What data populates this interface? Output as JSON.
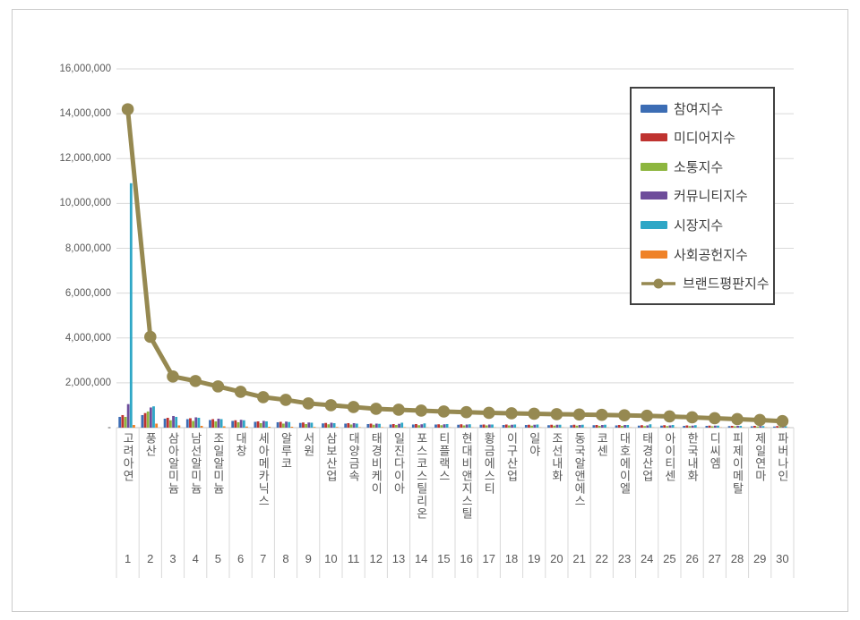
{
  "chart_data": {
    "type": "bar",
    "subtype": "grouped-bars-with-line-overlay",
    "title": "",
    "grid": true,
    "legend_position": "top-right",
    "categories": [
      "고려아연",
      "풍산",
      "삼아알미늄",
      "남선알미늄",
      "조일알미늄",
      "대창",
      "세아메카닉스",
      "알루코",
      "서원",
      "삼보산업",
      "대양금속",
      "태경비케이",
      "일진다이아",
      "포스코스틸리온",
      "티플랙스",
      "현대비앤지스틸",
      "황금에스티",
      "이구산업",
      "일야",
      "조선내화",
      "동국알앤에스",
      "코센",
      "대호에이엘",
      "태경산업",
      "아이티센",
      "한국내화",
      "디씨엠",
      "피제이메탈",
      "제일연마",
      "파버나인"
    ],
    "rank_labels": [
      "1",
      "2",
      "3",
      "4",
      "5",
      "6",
      "7",
      "8",
      "9",
      "10",
      "11",
      "12",
      "13",
      "14",
      "15",
      "16",
      "17",
      "18",
      "19",
      "20",
      "21",
      "22",
      "23",
      "24",
      "25",
      "26",
      "27",
      "28",
      "29",
      "30"
    ],
    "y_axis": {
      "min": 0,
      "max": 16000000,
      "step": 2000000,
      "tick_labels_top_to_bottom": [
        "16,000,000",
        "14,000,000",
        "12,000,000",
        "10,000,000",
        "8,000,000",
        "6,000,000",
        "4,000,000",
        "2,000,000",
        "-"
      ]
    },
    "series": [
      {
        "name": "참여지수",
        "color": "#3C6DB4",
        "values": [
          480000,
          560000,
          400000,
          380000,
          340000,
          300000,
          260000,
          240000,
          210000,
          190000,
          180000,
          160000,
          140000,
          140000,
          140000,
          130000,
          130000,
          120000,
          120000,
          110000,
          110000,
          110000,
          100000,
          90000,
          90000,
          80000,
          80000,
          70000,
          60000,
          50000
        ]
      },
      {
        "name": "미디어지수",
        "color": "#BF3330",
        "values": [
          560000,
          650000,
          440000,
          420000,
          380000,
          330000,
          280000,
          260000,
          230000,
          210000,
          200000,
          180000,
          160000,
          160000,
          150000,
          150000,
          140000,
          140000,
          130000,
          130000,
          130000,
          120000,
          120000,
          110000,
          110000,
          100000,
          90000,
          80000,
          80000,
          70000
        ]
      },
      {
        "name": "소통지수",
        "color": "#8DB63F",
        "values": [
          480000,
          720000,
          330000,
          300000,
          280000,
          240000,
          200000,
          180000,
          160000,
          150000,
          140000,
          130000,
          120000,
          110000,
          110000,
          100000,
          100000,
          100000,
          90000,
          90000,
          90000,
          80000,
          80000,
          70000,
          70000,
          70000,
          60000,
          60000,
          50000,
          40000
        ]
      },
      {
        "name": "커뮤니티지수",
        "color": "#6E4D9B",
        "values": [
          1050000,
          900000,
          520000,
          460000,
          400000,
          350000,
          300000,
          270000,
          230000,
          220000,
          200000,
          180000,
          170000,
          150000,
          150000,
          140000,
          140000,
          130000,
          130000,
          130000,
          120000,
          120000,
          120000,
          100000,
          100000,
          90000,
          90000,
          80000,
          70000,
          60000
        ]
      },
      {
        "name": "시장지수",
        "color": "#2FA7C6",
        "values": [
          10900000,
          950000,
          480000,
          440000,
          380000,
          330000,
          280000,
          250000,
          220000,
          200000,
          180000,
          170000,
          220000,
          190000,
          160000,
          150000,
          140000,
          140000,
          140000,
          130000,
          130000,
          130000,
          120000,
          150000,
          120000,
          110000,
          90000,
          80000,
          70000,
          60000
        ]
      },
      {
        "name": "사회공헌지수",
        "color": "#EF8228",
        "values": [
          120000,
          180000,
          100000,
          80000,
          60000,
          50000,
          40000,
          40000,
          30000,
          30000,
          20000,
          20000,
          20000,
          10000,
          10000,
          10000,
          10000,
          10000,
          10000,
          10000,
          10000,
          10000,
          10000,
          10000,
          10000,
          10000,
          10000,
          10000,
          10000,
          10000
        ]
      }
    ],
    "line_series": {
      "name": "브랜드평판지수",
      "color": "#968951",
      "values": [
        14200000,
        4050000,
        2280000,
        2080000,
        1840000,
        1600000,
        1360000,
        1240000,
        1080000,
        1000000,
        920000,
        840000,
        800000,
        760000,
        720000,
        690000,
        660000,
        640000,
        620000,
        600000,
        585000,
        570000,
        550000,
        530000,
        500000,
        460000,
        420000,
        380000,
        340000,
        290000
      ]
    },
    "style_colors": {
      "gridline": "#d9d9d9",
      "axis_line": "#c6c6c6",
      "tick_text": "#595959",
      "legend_border": "#404040"
    }
  }
}
